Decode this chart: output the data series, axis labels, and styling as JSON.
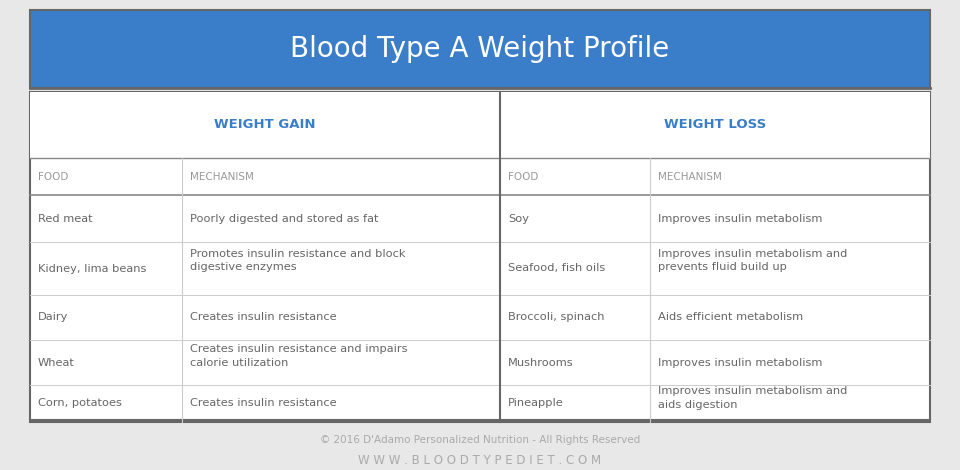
{
  "title": "Blood Type A Weight Profile",
  "title_bg": "#3a7dc9",
  "title_color": "#ffffff",
  "title_fontsize": 20,
  "section_headers": [
    "WEIGHT GAIN",
    "WEIGHT LOSS"
  ],
  "section_header_color": "#3a7dc9",
  "col_headers": [
    "FOOD",
    "MECHANISM",
    "FOOD",
    "MECHANISM"
  ],
  "col_header_color": "#999999",
  "rows": [
    [
      "Red meat",
      "Poorly digested and stored as fat",
      "Soy",
      "Improves insulin metabolism"
    ],
    [
      "Kidney, lima beans",
      "Promotes insulin resistance and block\ndigestive enzymes",
      "Seafood, fish oils",
      "Improves insulin metabolism and\nprevents fluid build up"
    ],
    [
      "Dairy",
      "Creates insulin resistance",
      "Broccoli, spinach",
      "Aids efficient metabolism"
    ],
    [
      "Wheat",
      "Creates insulin resistance and impairs\ncalorie utilization",
      "Mushrooms",
      "Improves insulin metabolism"
    ],
    [
      "Corn, potatoes",
      "Creates insulin resistance",
      "Pineapple",
      "Improves insulin metabolism and\naids digestion"
    ]
  ],
  "footer1": "© 2016 D'Adamo Personalized Nutrition - All Rights Reserved",
  "footer2": "W W W . B L O O D T Y P E D I E T . C O M",
  "footer_color": "#aaaaaa",
  "outer_bg": "#e8e8e8",
  "bg_color": "#ffffff",
  "border_color": "#666666",
  "line_color": "#cccccc",
  "strong_line_color": "#888888",
  "text_color": "#777777",
  "cell_text_color": "#666666",
  "section_bg": "#ffffff"
}
